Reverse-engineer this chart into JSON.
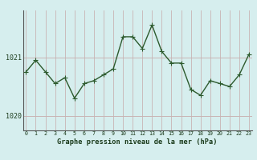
{
  "x": [
    0,
    1,
    2,
    3,
    4,
    5,
    6,
    7,
    8,
    9,
    10,
    11,
    12,
    13,
    14,
    15,
    16,
    17,
    18,
    19,
    20,
    21,
    22,
    23
  ],
  "y": [
    1020.75,
    1020.95,
    1020.75,
    1020.55,
    1020.65,
    1020.3,
    1020.55,
    1020.6,
    1020.7,
    1020.8,
    1021.35,
    1021.35,
    1021.15,
    1021.55,
    1021.1,
    1020.9,
    1020.9,
    1020.45,
    1020.35,
    1020.6,
    1020.55,
    1020.5,
    1020.7,
    1021.05
  ],
  "line_color": "#2d5a2d",
  "marker_color": "#2d5a2d",
  "bg_color": "#d6eeee",
  "grid_h_color": "#c8b4b4",
  "grid_v_color": "#c8b4b4",
  "xlabel": "Graphe pression niveau de la mer (hPa)",
  "tick_color": "#1a3a1a",
  "ytick_labels": [
    "1020",
    "1021"
  ],
  "ytick_vals": [
    1020.0,
    1021.0
  ],
  "ylim": [
    1019.75,
    1021.8
  ],
  "xlim": [
    -0.3,
    23.3
  ],
  "marker_size": 2.5,
  "line_width": 1.0
}
